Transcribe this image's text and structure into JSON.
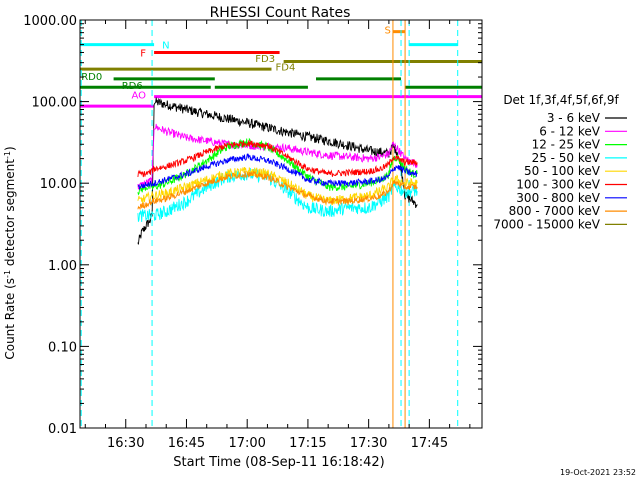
{
  "chart_data": {
    "type": "line",
    "title": "RHESSI Count Rates",
    "xlabel": "Start Time (08-Sep-11 16:18:42)",
    "ylabel_parts": [
      "Count Rate (s",
      "-1",
      " detector segment",
      "-1",
      ")"
    ],
    "xlim": [
      "16:18:42",
      "17:58:00"
    ],
    "ylim": [
      0.01,
      1000
    ],
    "yscale": "log",
    "yticks": [
      {
        "v": 0.01,
        "label": "0.01"
      },
      {
        "v": 0.1,
        "label": "0.10"
      },
      {
        "v": 1,
        "label": "1.00"
      },
      {
        "v": 10,
        "label": "10.00"
      },
      {
        "v": 100,
        "label": "100.00"
      },
      {
        "v": 1000,
        "label": "1000.00"
      }
    ],
    "xticks": [
      "16:30",
      "16:45",
      "17:00",
      "17:15",
      "17:30",
      "17:45"
    ],
    "legend_title": "Det 1f,3f,4f,5f,6f,9f",
    "legend_placement": "right",
    "series": [
      {
        "name": "3 - 6 keV",
        "color": "#000000",
        "noise": 0.06,
        "x": [
          "16:33",
          "16:34",
          "16:35",
          "16:36",
          "16:36:30",
          "16:37",
          "16:40",
          "16:45",
          "16:50",
          "16:55",
          "17:00",
          "17:05",
          "17:10",
          "17:15",
          "17:20",
          "17:25",
          "17:30",
          "17:33",
          "17:35",
          "17:36",
          "17:37",
          "17:38",
          "17:39",
          "17:41",
          "17:42"
        ],
        "y": [
          1.8,
          2.5,
          3,
          3.5,
          4,
          100,
          92,
          80,
          70,
          62,
          55,
          48,
          42,
          37,
          33,
          29,
          25,
          24,
          23,
          28,
          25,
          16,
          7,
          6,
          5.5
        ]
      },
      {
        "name": "6 - 12 keV",
        "color": "#ff00ff",
        "noise": 0.05,
        "x": [
          "16:33",
          "16:35",
          "16:36:30",
          "16:37",
          "16:40",
          "16:45",
          "16:50",
          "16:55",
          "17:00",
          "17:05",
          "17:10",
          "17:15",
          "17:20",
          "17:25",
          "17:30",
          "17:33",
          "17:35",
          "17:36",
          "17:37",
          "17:39",
          "17:41",
          "17:42"
        ],
        "y": [
          9,
          10,
          11,
          50,
          43,
          36,
          33,
          30,
          29,
          28,
          27,
          24,
          22,
          21,
          20,
          21,
          23,
          30,
          27,
          20,
          18,
          17
        ]
      },
      {
        "name": "12 - 25 keV",
        "color": "#00ff00",
        "noise": 0.05,
        "x": [
          "16:33",
          "16:35",
          "16:36:30",
          "16:37",
          "16:40",
          "16:45",
          "16:50",
          "16:55",
          "17:00",
          "17:05",
          "17:10",
          "17:15",
          "17:20",
          "17:25",
          "17:30",
          "17:33",
          "17:35",
          "17:36",
          "17:37",
          "17:39",
          "17:41",
          "17:42"
        ],
        "y": [
          8,
          9,
          9,
          9,
          10,
          13,
          19,
          28,
          32,
          28,
          19,
          12,
          9,
          9,
          10,
          11,
          13,
          20,
          21,
          15,
          13,
          13
        ]
      },
      {
        "name": "25 - 50 keV",
        "color": "#00ffff",
        "noise": 0.08,
        "x": [
          "16:33",
          "16:35",
          "16:36:30",
          "16:37",
          "16:40",
          "16:45",
          "16:50",
          "16:55",
          "17:00",
          "17:05",
          "17:10",
          "17:15",
          "17:20",
          "17:25",
          "17:30",
          "17:33",
          "17:35",
          "17:36",
          "17:37",
          "17:39",
          "17:41",
          "17:42"
        ],
        "y": [
          4,
          4,
          4,
          4,
          4.5,
          6,
          9,
          12,
          13,
          12,
          8,
          5,
          4.5,
          5,
          5,
          6,
          7,
          9,
          9,
          8,
          8,
          8
        ]
      },
      {
        "name": "50 - 100 keV",
        "color": "#ffd700",
        "noise": 0.06,
        "x": [
          "16:33",
          "16:35",
          "16:36:30",
          "16:37",
          "16:40",
          "16:45",
          "16:50",
          "16:55",
          "17:00",
          "17:05",
          "17:10",
          "17:15",
          "17:20",
          "17:25",
          "17:30",
          "17:33",
          "17:35",
          "17:36",
          "17:37",
          "17:39",
          "17:41",
          "17:42"
        ],
        "y": [
          6,
          6.5,
          7,
          7,
          7.5,
          9,
          11,
          13,
          14,
          13,
          10,
          7,
          6,
          6.5,
          7,
          8,
          9,
          11,
          11,
          10,
          10,
          10
        ]
      },
      {
        "name": "100 - 300 keV",
        "color": "#ff0000",
        "noise": 0.04,
        "x": [
          "16:33",
          "16:35",
          "16:36:30",
          "16:37",
          "16:40",
          "16:45",
          "16:50",
          "16:55",
          "17:00",
          "17:05",
          "17:10",
          "17:15",
          "17:20",
          "17:25",
          "17:30",
          "17:33",
          "17:35",
          "17:36",
          "17:37",
          "17:39",
          "17:41",
          "17:42"
        ],
        "y": [
          13,
          13,
          14,
          15,
          16,
          19,
          24,
          29,
          31,
          29,
          21,
          15,
          13,
          13.5,
          14,
          15,
          17,
          21,
          20,
          18,
          18,
          18
        ]
      },
      {
        "name": "300 - 800 keV",
        "color": "#0000ff",
        "noise": 0.04,
        "x": [
          "16:33",
          "16:35",
          "16:36:30",
          "16:37",
          "16:40",
          "16:45",
          "16:50",
          "16:55",
          "17:00",
          "17:05",
          "17:10",
          "17:15",
          "17:20",
          "17:25",
          "17:30",
          "17:33",
          "17:35",
          "17:36",
          "17:37",
          "17:39",
          "17:41",
          "17:42"
        ],
        "y": [
          9,
          9.5,
          10,
          10,
          11,
          13,
          16,
          19,
          21,
          19,
          15,
          11,
          10,
          10,
          10.5,
          11,
          12,
          15,
          16,
          14,
          13,
          13
        ]
      },
      {
        "name": "800 - 7000 keV",
        "color": "#ff8c00",
        "noise": 0.04,
        "x": [
          "16:33",
          "16:35",
          "16:36:30",
          "16:37",
          "16:40",
          "16:45",
          "16:50",
          "16:55",
          "17:00",
          "17:05",
          "17:10",
          "17:15",
          "17:20",
          "17:25",
          "17:30",
          "17:33",
          "17:35",
          "17:36",
          "17:37",
          "17:39",
          "17:41",
          "17:42"
        ],
        "y": [
          5,
          5.5,
          6,
          6,
          6.5,
          8,
          10,
          12,
          13,
          12,
          9,
          7,
          6,
          6,
          6.5,
          7,
          8,
          10,
          10,
          9,
          9,
          9
        ]
      },
      {
        "name": "7000 - 15000 keV",
        "color": "#808000",
        "noise": 0,
        "x": [],
        "y": []
      }
    ],
    "flag_bars": [
      {
        "label": "N",
        "color": "#00ffff",
        "y": 500,
        "segments": [
          [
            "16:18:42",
            "16:37"
          ],
          [
            "17:40",
            "17:52"
          ]
        ]
      },
      {
        "label": "F",
        "color": "#ff0000",
        "y": 400,
        "segments": [
          [
            "16:37",
            "17:08"
          ]
        ]
      },
      {
        "label": "FD3",
        "color": "#808000",
        "y": 310,
        "segments": [
          [
            "17:09",
            "17:58"
          ]
        ]
      },
      {
        "label": "FD4",
        "color": "#808000",
        "y": 250,
        "segments": [
          [
            "16:18:42",
            "17:06"
          ]
        ]
      },
      {
        "label": "RD0",
        "color": "#008000",
        "y": 190,
        "segments": [
          [
            "16:27",
            "16:52"
          ],
          [
            "17:17",
            "17:38"
          ]
        ]
      },
      {
        "label": "RD6",
        "color": "#008000",
        "y": 150,
        "segments": [
          [
            "16:18:42",
            "16:51"
          ],
          [
            "16:52",
            "17:15"
          ],
          [
            "17:39",
            "17:58"
          ]
        ]
      },
      {
        "label": "AO",
        "color": "#ff00ff",
        "y": 115,
        "segments": [
          [
            "16:37",
            "17:58"
          ]
        ]
      },
      {
        "label": "",
        "color": "#ff00ff",
        "y": 88,
        "segments": [
          [
            "16:18:42",
            "16:37"
          ]
        ]
      },
      {
        "label": "S",
        "color": "#ff8c00",
        "y": 720,
        "segments": [
          [
            "17:36",
            "17:39"
          ]
        ]
      }
    ],
    "flag_labels": [
      {
        "text": "N",
        "color": "#00ffff"
      },
      {
        "text": "F",
        "color": "#ff0000"
      },
      {
        "text": "FD3",
        "color": "#808000"
      },
      {
        "text": "FD4",
        "color": "#808000"
      },
      {
        "text": "RD0",
        "color": "#008000"
      },
      {
        "text": "RD6",
        "color": "#008000"
      },
      {
        "text": "AO",
        "color": "#ff00ff"
      },
      {
        "text": "S",
        "color": "#ff8c00"
      }
    ],
    "vertical_lines": [
      {
        "x": "16:19",
        "color": "#00ffff",
        "dash": true
      },
      {
        "x": "16:36:30",
        "color": "#00ffff",
        "dash": true
      },
      {
        "x": "17:36",
        "color": "#ff8c00",
        "dash": false
      },
      {
        "x": "17:38",
        "color": "#00ffff",
        "dash": true
      },
      {
        "x": "17:39",
        "color": "#ff8c00",
        "dash": false
      },
      {
        "x": "17:40",
        "color": "#00ffff",
        "dash": true
      },
      {
        "x": "17:52",
        "color": "#00ffff",
        "dash": true
      }
    ],
    "timestamp": "19-Oct-2021 23:52"
  }
}
